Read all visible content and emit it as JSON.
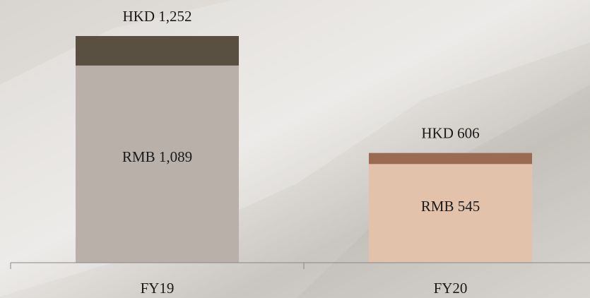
{
  "chart_data": {
    "type": "overlap-bar",
    "categories": [
      "FY19",
      "FY20"
    ],
    "series": [
      {
        "colors": [
          "#5a5042",
          "#9a6b52"
        ],
        "values": [
          1252,
          606
        ],
        "value_labels": [
          "HKD 1,252",
          "HKD 606"
        ]
      },
      {
        "colors": [
          "#b9b1a9",
          "#e2c2ab"
        ],
        "values": [
          1089,
          545
        ],
        "value_labels": [
          "RMB 1,089",
          "RMB 545"
        ]
      }
    ]
  }
}
